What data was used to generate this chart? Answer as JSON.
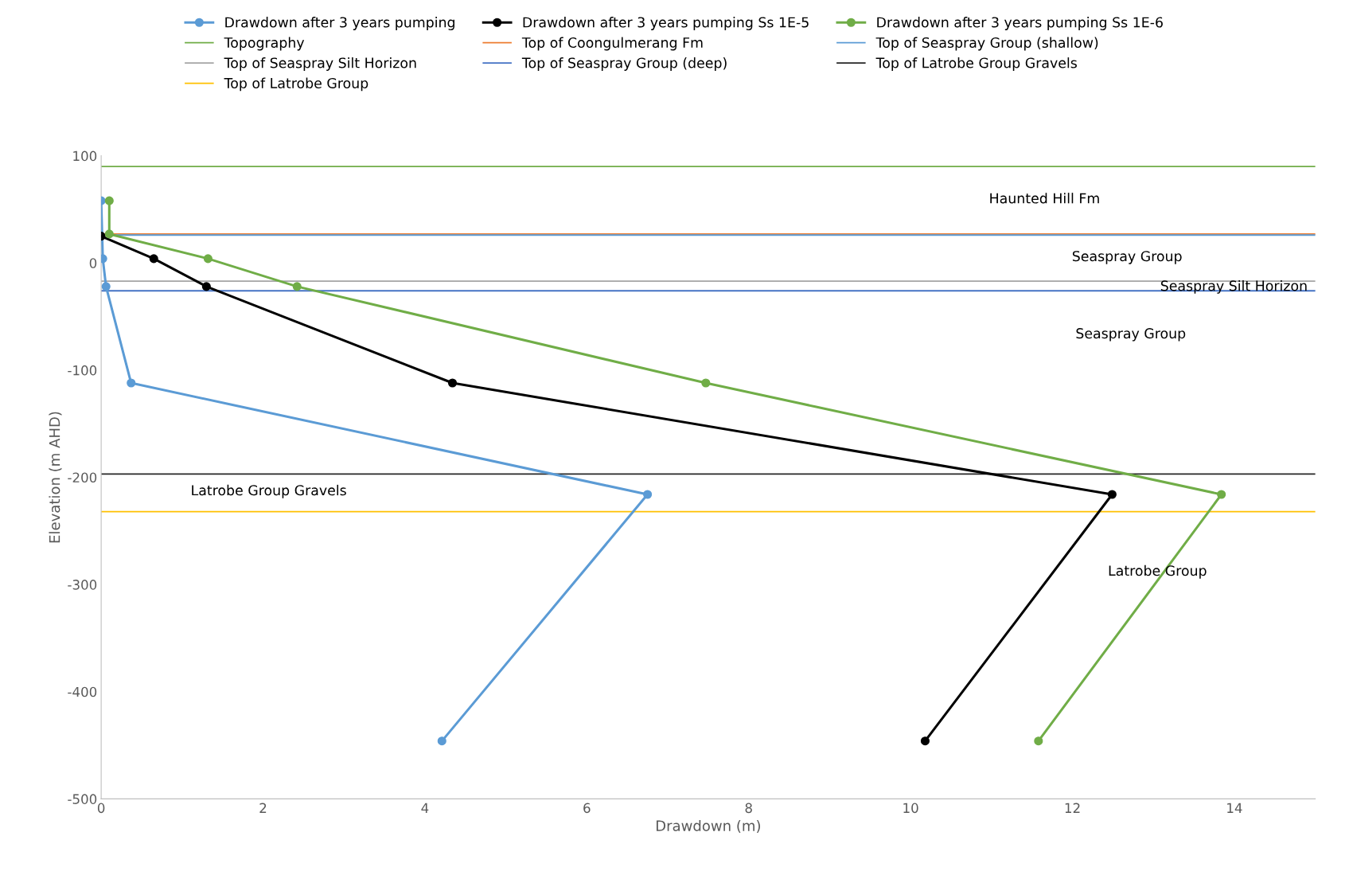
{
  "chart_data": {
    "type": "line",
    "xlabel": "Drawdown (m)",
    "ylabel": "Elevation (m AHD)",
    "xlim": [
      0,
      15
    ],
    "xticks": [
      0,
      2,
      4,
      6,
      8,
      10,
      12,
      14
    ],
    "ylim": [
      -500,
      100
    ],
    "yticks": [
      -500,
      -400,
      -300,
      -200,
      -100,
      0,
      100
    ],
    "grid": false,
    "legend": "top",
    "marker": "circle",
    "line_style": "solid",
    "series": [
      {
        "name": "Drawdown after 3 years pumping",
        "color": "#5b9bd5",
        "x": [
          0,
          0.02,
          0.06,
          0.37,
          6.75,
          4.21
        ],
        "values": [
          58,
          4,
          -22,
          -112,
          -216,
          -446
        ]
      },
      {
        "name": "Drawdown after 3 years pumping Ss 1E-5",
        "color": "#000000",
        "x": [
          0,
          0.65,
          1.3,
          4.34,
          12.49,
          10.18
        ],
        "values": [
          25,
          4,
          -22,
          -112,
          -216,
          -446
        ]
      },
      {
        "name": "Drawdown after 3 years pumping Ss 1E-6",
        "color": "#70ad47",
        "x": [
          0.1,
          0.1,
          1.32,
          2.42,
          7.47,
          13.84,
          11.58
        ],
        "values": [
          58,
          27,
          4,
          -22,
          -112,
          -216,
          -446
        ]
      }
    ],
    "ref_lines": [
      {
        "axis": "y",
        "value": 90,
        "label": "Topography",
        "color": "#70ad47"
      },
      {
        "axis": "y",
        "value": 27,
        "label": "Top of Coongulmerang Fm",
        "color": "#ed7d31"
      },
      {
        "axis": "y",
        "value": 26,
        "label": "Top of Seaspray Group (shallow)",
        "color": "#5b9bd5"
      },
      {
        "axis": "y",
        "value": -17,
        "label": "Top of Seaspray Silt Horizon",
        "color": "#a5a5a5"
      },
      {
        "axis": "y",
        "value": -26,
        "label": "Top of Seaspray Group (deep)",
        "color": "#4472c4"
      },
      {
        "axis": "y",
        "value": -197,
        "label": "Top of Latrobe Group Gravels",
        "color": "#262626"
      },
      {
        "axis": "y",
        "value": -232,
        "label": "Top of Latrobe Group",
        "color": "#ffc000"
      }
    ],
    "annotations": [
      "Haunted Hill Fm",
      "Seaspray Group",
      "Seaspray Silt Horizon",
      "Seaspray Group",
      "Latrobe Group Gravels",
      "Latrobe Group"
    ]
  }
}
